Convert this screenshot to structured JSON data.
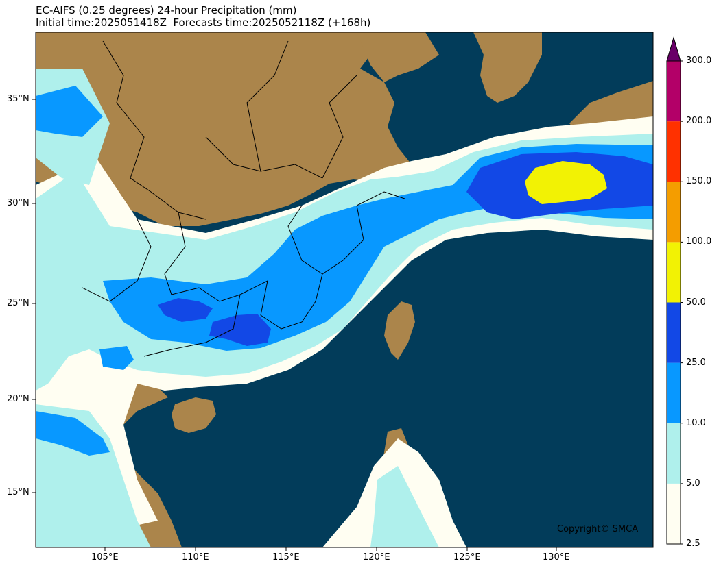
{
  "header": {
    "title_line1": "EC-AIFS (0.25 degrees) 24-hour Precipitation (mm)",
    "title_line2": "Initial time:2025051418Z  Forecasts time:2025052118Z (+168h)"
  },
  "map": {
    "lon_ticks": [
      "105°E",
      "110°E",
      "115°E",
      "120°E",
      "125°E",
      "130°E"
    ],
    "lat_ticks": [
      "35°N",
      "30°N",
      "25°N",
      "20°N",
      "15°N"
    ],
    "ocean_color": "#023c5a",
    "land_color": "#ab854b",
    "copyright": "Copyright© SMCA"
  },
  "colorbar": {
    "levels": [
      "2.5",
      "5.0",
      "10.0",
      "25.0",
      "50.0",
      "100.0",
      "150.0",
      "200.0",
      "300.0"
    ],
    "colors": [
      "#fffef2",
      "#aff0ec",
      "#0898ff",
      "#1248e6",
      "#f2f204",
      "#f49d00",
      "#ff3100",
      "#b30068"
    ],
    "extend_color": "#690068"
  }
}
